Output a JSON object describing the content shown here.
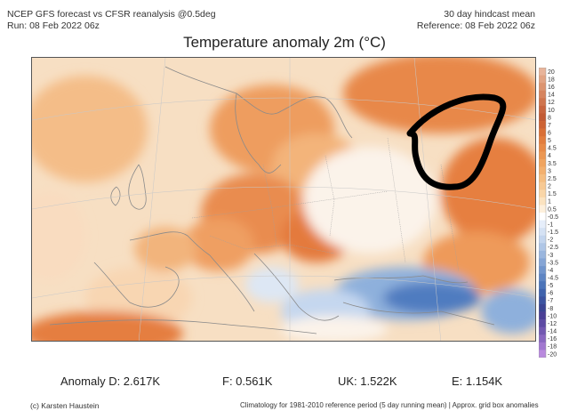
{
  "header": {
    "left_line1": "NCEP GFS forecast vs CFSR reanalysis @0.5deg",
    "left_line2": "Run: 08 Feb 2022 06z",
    "right_line1": "30 day hindcast mean",
    "right_line2": "Reference: 08 Feb 2022 06z"
  },
  "title": "Temperature anomaly 2m (°C)",
  "colorbar": {
    "labels": [
      "20",
      "18",
      "16",
      "14",
      "12",
      "10",
      "8",
      "7",
      "6",
      "5",
      "4.5",
      "4",
      "3.5",
      "3",
      "2.5",
      "2",
      "1.5",
      "1",
      "0.5",
      "-0.5",
      "-1",
      "-1.5",
      "-2",
      "-2.5",
      "-3",
      "-3.5",
      "-4",
      "-4.5",
      "-5",
      "-6",
      "-7",
      "-8",
      "-10",
      "-12",
      "-14",
      "-16",
      "-18",
      "-20"
    ],
    "colors": [
      "#e8b49a",
      "#e2a484",
      "#dc9470",
      "#d6845e",
      "#cf744d",
      "#c8643e",
      "#c25a34",
      "#cd6334",
      "#d96f36",
      "#e27d3e",
      "#e88a47",
      "#ec9752",
      "#f0a45f",
      "#f3b06e",
      "#f5bd80",
      "#f7c993",
      "#f9d6a8",
      "#fbe3c0",
      "#fdf0dc",
      "#ffffff",
      "#e6eefa",
      "#d5e2f4",
      "#c3d5ee",
      "#afc6e6",
      "#9ab6de",
      "#85a5d5",
      "#7195cc",
      "#5e85c3",
      "#4b74b9",
      "#3f63ad",
      "#3b53a0",
      "#3a4493",
      "#4a3f95",
      "#5d4aa3",
      "#7258b1",
      "#8967c0",
      "#a178cf",
      "#b98ade"
    ]
  },
  "stats": {
    "anomaly_d": "Anomaly D: 2.617K",
    "f": "F: 0.561K",
    "uk": "UK: 1.522K",
    "e": "E: 1.154K"
  },
  "footer": {
    "credit": "(c) Karsten Haustein",
    "note": "Climatology for 1981-2010 reference period (5 day running mean) | Approx. grid box anomalies"
  },
  "map_colors": {
    "warm_light": "#f8d3a8",
    "warm_mid": "#f2aa6c",
    "warm_strong": "#e67f3f",
    "warm_deep": "#cf5d2e",
    "neutral": "#fbf3ea",
    "cold_light": "#c5d7ef",
    "cold_mid": "#8eb0dc",
    "cold_strong": "#4f7cc0",
    "border": "#8a8a8a",
    "annotation": "#000000"
  }
}
